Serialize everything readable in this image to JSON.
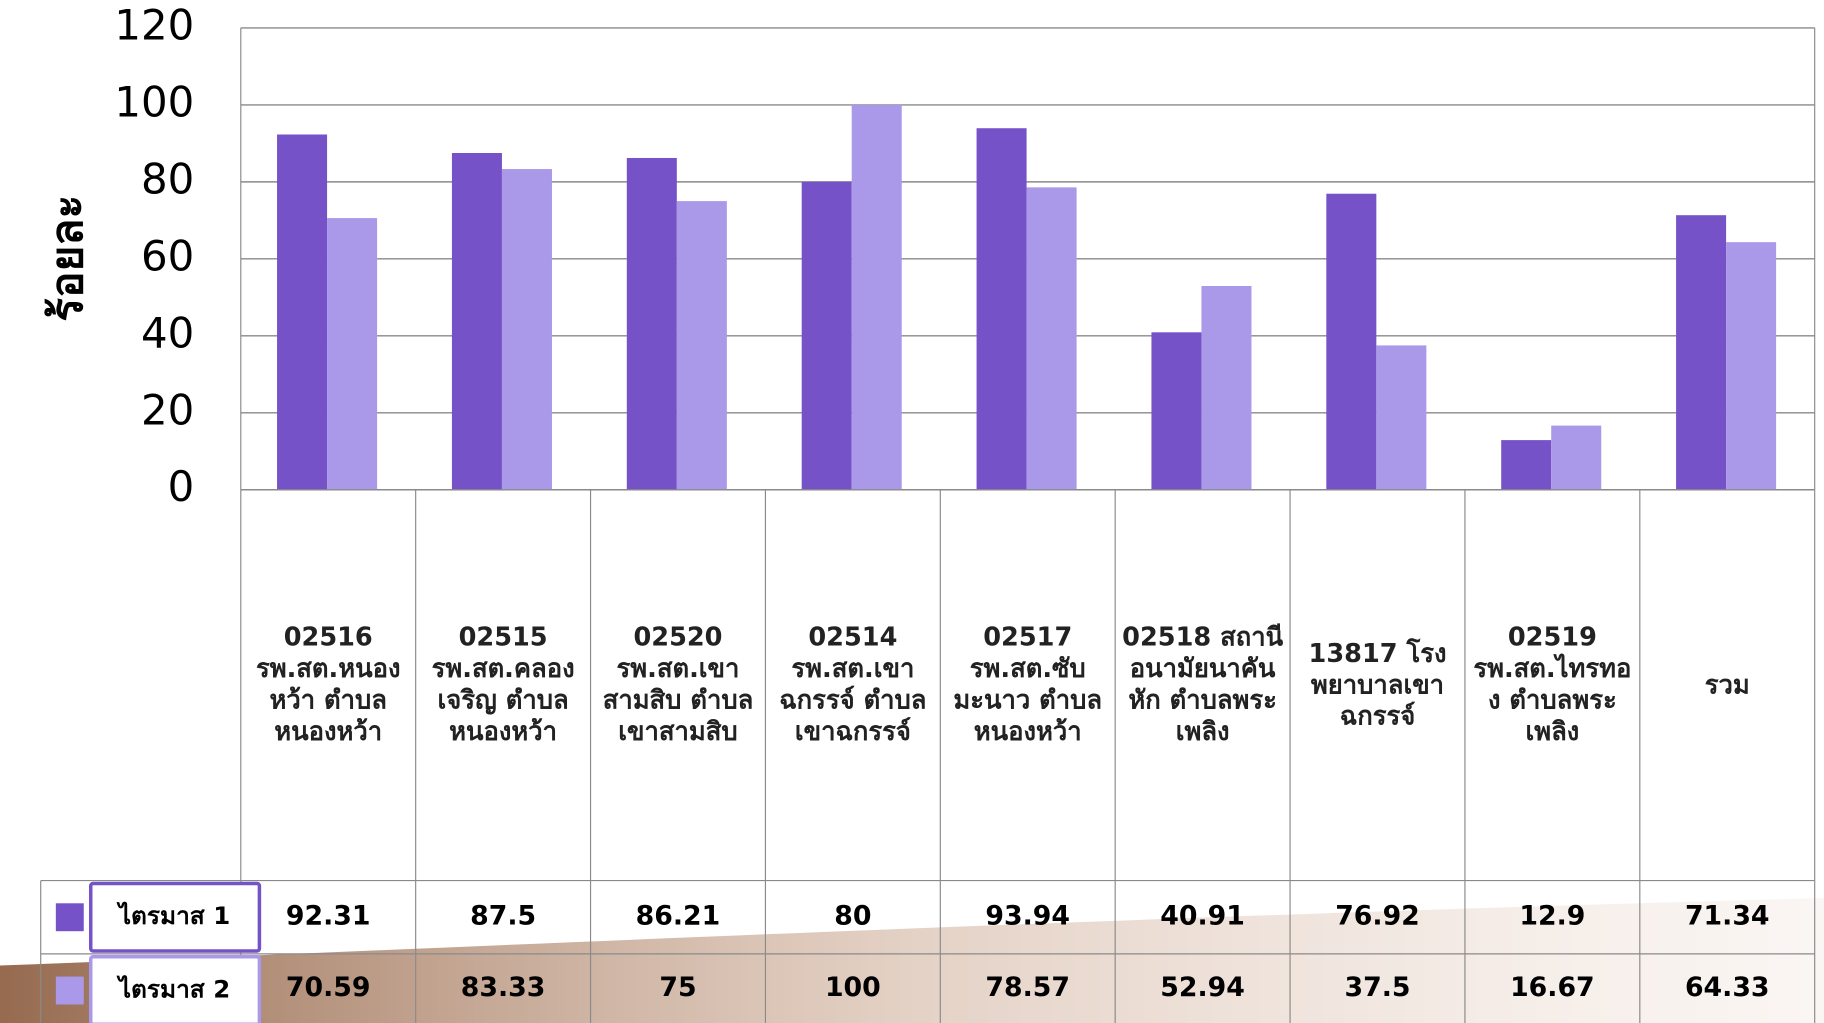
{
  "chart_data": {
    "type": "bar",
    "y_label": "ร้อยละ",
    "categories": [
      "02516 รพ.สต.หนองหว้า ตำบลหนองหว้า",
      "02515 รพ.สต.คลองเจริญ ตำบลหนองหว้า",
      "02520 รพ.สต.เขาสามสิบ ตำบลเขาสามสิบ",
      "02514 รพ.สต.เขาฉกรรจ์ ตำบลเขาฉกรรจ์",
      "02517 รพ.สต.ซับมะนาว ตำบลหนองหว้า",
      "02518 สถานีอนามัยนาคันหัก ตำบลพระเพลิง",
      "13817 โรงพยาบาลเขาฉกรรจ์",
      "02519 รพ.สต.ไทรทอง ตำบลพระเพลิง",
      "รวม"
    ],
    "series": [
      {
        "name": "ไตรมาส 1",
        "color": "#7652c8",
        "values": [
          92.31,
          87.5,
          86.21,
          80,
          93.94,
          40.91,
          76.92,
          12.9,
          71.34
        ]
      },
      {
        "name": "ไตรมาส 2",
        "color": "#aa98e8",
        "values": [
          70.59,
          83.33,
          75,
          100,
          78.57,
          52.94,
          37.5,
          16.67,
          64.33
        ]
      }
    ],
    "ylim": [
      0,
      120
    ],
    "yticks": [
      0,
      20,
      40,
      60,
      80,
      100,
      120
    ],
    "grid": true
  }
}
